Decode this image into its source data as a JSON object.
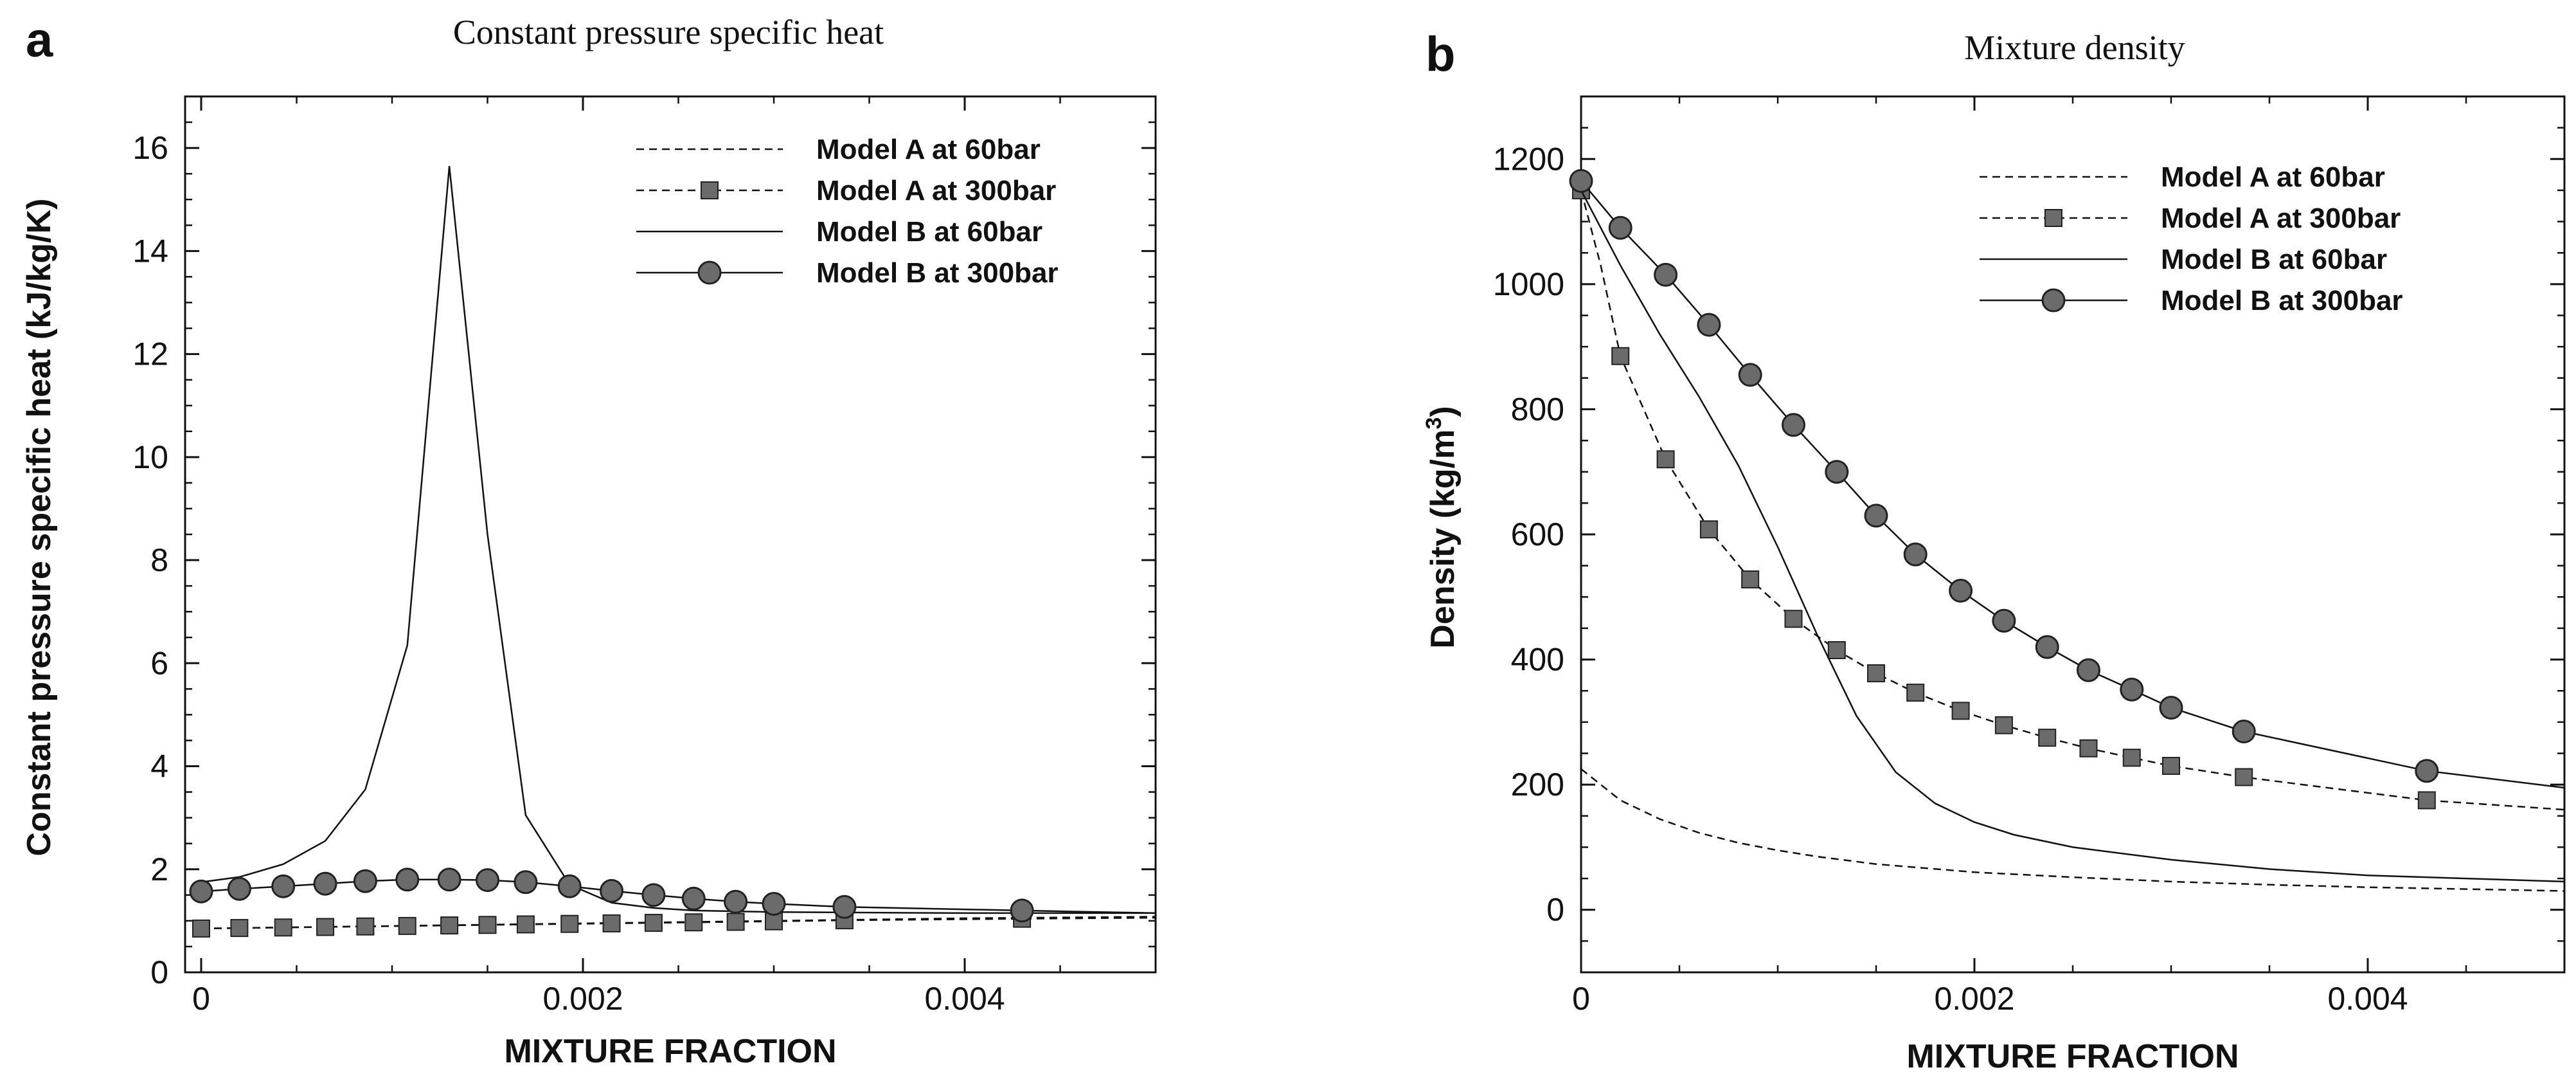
{
  "chart_data": [
    {
      "panel": "a",
      "type": "line",
      "title": "Constant pressure specific heat",
      "xlabel": "MIXTURE FRACTION",
      "ylabel": "Constant pressure specific heat (kJ/kg/K)",
      "xlim": [
        0,
        0.005
      ],
      "ylim": [
        0,
        17
      ],
      "xticks": [
        0,
        0.002,
        0.004
      ],
      "xtick_labels": [
        "0",
        "0.002",
        "0.004"
      ],
      "yticks": [
        0,
        2,
        4,
        6,
        8,
        10,
        12,
        14,
        16
      ],
      "ytick_labels": [
        "0",
        "2",
        "4",
        "6",
        "8",
        "10",
        "12",
        "14",
        "16"
      ],
      "legend_position": "top-right",
      "series": [
        {
          "name": "Model A at 60bar",
          "style": "dashed",
          "marker": "none",
          "x": [
            0,
            0.001,
            0.002,
            0.003,
            0.004,
            0.005
          ],
          "y": [
            0.85,
            0.9,
            0.95,
            1.0,
            1.05,
            1.08
          ]
        },
        {
          "name": "Model A at 300bar",
          "style": "dashed",
          "marker": "square",
          "x": [
            0,
            0.0002,
            0.00043,
            0.00065,
            0.00086,
            0.00108,
            0.0013,
            0.0015,
            0.0017,
            0.00193,
            0.00215,
            0.00237,
            0.00258,
            0.0028,
            0.003,
            0.00337,
            0.0043,
            0.005
          ],
          "y": [
            0.85,
            0.86,
            0.87,
            0.88,
            0.89,
            0.9,
            0.91,
            0.92,
            0.93,
            0.94,
            0.95,
            0.96,
            0.97,
            0.98,
            0.99,
            1.01,
            1.04,
            1.06
          ],
          "marker_x": [
            0,
            0.0002,
            0.00043,
            0.00065,
            0.00086,
            0.00108,
            0.0013,
            0.0015,
            0.0017,
            0.00193,
            0.00215,
            0.00237,
            0.00258,
            0.0028,
            0.003,
            0.00337,
            0.0043
          ],
          "marker_y": [
            0.85,
            0.86,
            0.87,
            0.88,
            0.89,
            0.9,
            0.91,
            0.92,
            0.93,
            0.94,
            0.95,
            0.96,
            0.97,
            0.98,
            0.99,
            1.01,
            1.04
          ]
        },
        {
          "name": "Model B at 60bar",
          "style": "solid",
          "marker": "none",
          "x": [
            0,
            0.0002,
            0.00043,
            0.00065,
            0.00086,
            0.00108,
            0.0013,
            0.0015,
            0.0017,
            0.00193,
            0.00215,
            0.00237,
            0.00258,
            0.003,
            0.004,
            0.005
          ],
          "y": [
            1.75,
            1.85,
            2.1,
            2.55,
            3.55,
            6.35,
            15.65,
            8.5,
            3.05,
            1.7,
            1.35,
            1.25,
            1.2,
            1.17,
            1.15,
            1.15
          ]
        },
        {
          "name": "Model B at 300bar",
          "style": "solid",
          "marker": "circle",
          "x": [
            0,
            0.0002,
            0.00043,
            0.00065,
            0.00086,
            0.00108,
            0.0013,
            0.0015,
            0.0017,
            0.00193,
            0.00215,
            0.00237,
            0.00258,
            0.0028,
            0.003,
            0.00337,
            0.0043,
            0.005
          ],
          "y": [
            1.57,
            1.62,
            1.67,
            1.72,
            1.77,
            1.8,
            1.8,
            1.79,
            1.75,
            1.67,
            1.58,
            1.5,
            1.43,
            1.37,
            1.33,
            1.27,
            1.2,
            1.15
          ],
          "marker_x": [
            0,
            0.0002,
            0.00043,
            0.00065,
            0.00086,
            0.00108,
            0.0013,
            0.0015,
            0.0017,
            0.00193,
            0.00215,
            0.00237,
            0.00258,
            0.0028,
            0.003,
            0.00337,
            0.0043
          ],
          "marker_y": [
            1.57,
            1.62,
            1.67,
            1.72,
            1.77,
            1.8,
            1.8,
            1.79,
            1.75,
            1.67,
            1.58,
            1.5,
            1.43,
            1.37,
            1.33,
            1.27,
            1.2
          ]
        }
      ]
    },
    {
      "panel": "b",
      "type": "line",
      "title": "Mixture density",
      "xlabel": "MIXTURE FRACTION",
      "ylabel": "Density (kg/m",
      "ylabel_sup": "3",
      "ylabel_end": ")",
      "xlim": [
        0,
        0.005
      ],
      "ylim": [
        -100,
        1300
      ],
      "xticks": [
        0,
        0.002,
        0.004
      ],
      "xtick_labels": [
        "0",
        "0.002",
        "0.004"
      ],
      "yticks": [
        0,
        200,
        400,
        600,
        800,
        1000,
        1200
      ],
      "ytick_labels": [
        "0",
        "200",
        "400",
        "600",
        "800",
        "1000",
        "1200"
      ],
      "legend_position": "top-right",
      "series": [
        {
          "name": "Model A at 60bar",
          "style": "dashed",
          "marker": "none",
          "x": [
            0,
            0.0002,
            0.0004,
            0.0006,
            0.0008,
            0.001,
            0.0012,
            0.0015,
            0.002,
            0.0025,
            0.003,
            0.0035,
            0.004,
            0.0045,
            0.005
          ],
          "y": [
            225,
            175,
            145,
            123,
            107,
            95,
            85,
            73,
            60,
            52,
            45,
            40,
            36,
            33,
            30
          ]
        },
        {
          "name": "Model A at 300bar",
          "style": "dashed",
          "marker": "square",
          "x": [
            0,
            0.0001,
            0.0002,
            0.00043,
            0.00065,
            0.00086,
            0.00108,
            0.0013,
            0.0015,
            0.0017,
            0.00193,
            0.00215,
            0.00237,
            0.00258,
            0.0028,
            0.003,
            0.00337,
            0.0043,
            0.005
          ],
          "y": [
            1150,
            1030,
            885,
            720,
            608,
            528,
            465,
            415,
            378,
            347,
            318,
            295,
            275,
            258,
            243,
            230,
            212,
            175,
            160
          ],
          "marker_x": [
            0,
            0.0002,
            0.00043,
            0.00065,
            0.00086,
            0.00108,
            0.0013,
            0.0015,
            0.0017,
            0.00193,
            0.00215,
            0.00237,
            0.00258,
            0.0028,
            0.003,
            0.00337,
            0.0043
          ],
          "marker_y": [
            1150,
            885,
            720,
            608,
            528,
            465,
            415,
            378,
            347,
            318,
            295,
            275,
            258,
            243,
            230,
            212,
            175
          ]
        },
        {
          "name": "Model B at 60bar",
          "style": "solid",
          "marker": "none",
          "x": [
            0,
            0.0002,
            0.0004,
            0.0006,
            0.0008,
            0.001,
            0.0012,
            0.0014,
            0.0016,
            0.0018,
            0.002,
            0.0022,
            0.0025,
            0.003,
            0.0035,
            0.004,
            0.005
          ],
          "y": [
            1150,
            1030,
            920,
            820,
            710,
            580,
            440,
            310,
            220,
            170,
            140,
            120,
            100,
            80,
            65,
            55,
            45
          ]
        },
        {
          "name": "Model B at 300bar",
          "style": "solid",
          "marker": "circle",
          "x": [
            0,
            0.0002,
            0.00043,
            0.00065,
            0.00086,
            0.00108,
            0.0013,
            0.0015,
            0.0017,
            0.00193,
            0.00215,
            0.00237,
            0.00258,
            0.0028,
            0.003,
            0.00337,
            0.0043,
            0.005
          ],
          "y": [
            1165,
            1090,
            1015,
            935,
            855,
            775,
            700,
            630,
            568,
            510,
            462,
            420,
            383,
            352,
            323,
            285,
            222,
            195
          ],
          "marker_x": [
            0,
            0.0002,
            0.00043,
            0.00065,
            0.00086,
            0.00108,
            0.0013,
            0.0015,
            0.0017,
            0.00193,
            0.00215,
            0.00237,
            0.00258,
            0.0028,
            0.003,
            0.00337,
            0.0043
          ],
          "marker_y": [
            1165,
            1090,
            1015,
            935,
            855,
            775,
            700,
            630,
            568,
            510,
            462,
            420,
            383,
            352,
            323,
            285,
            222
          ]
        }
      ]
    }
  ],
  "colors": {
    "line": "#111111",
    "marker_fill": "#6b6b6b",
    "marker_stroke": "#222222",
    "background": "#ffffff"
  }
}
